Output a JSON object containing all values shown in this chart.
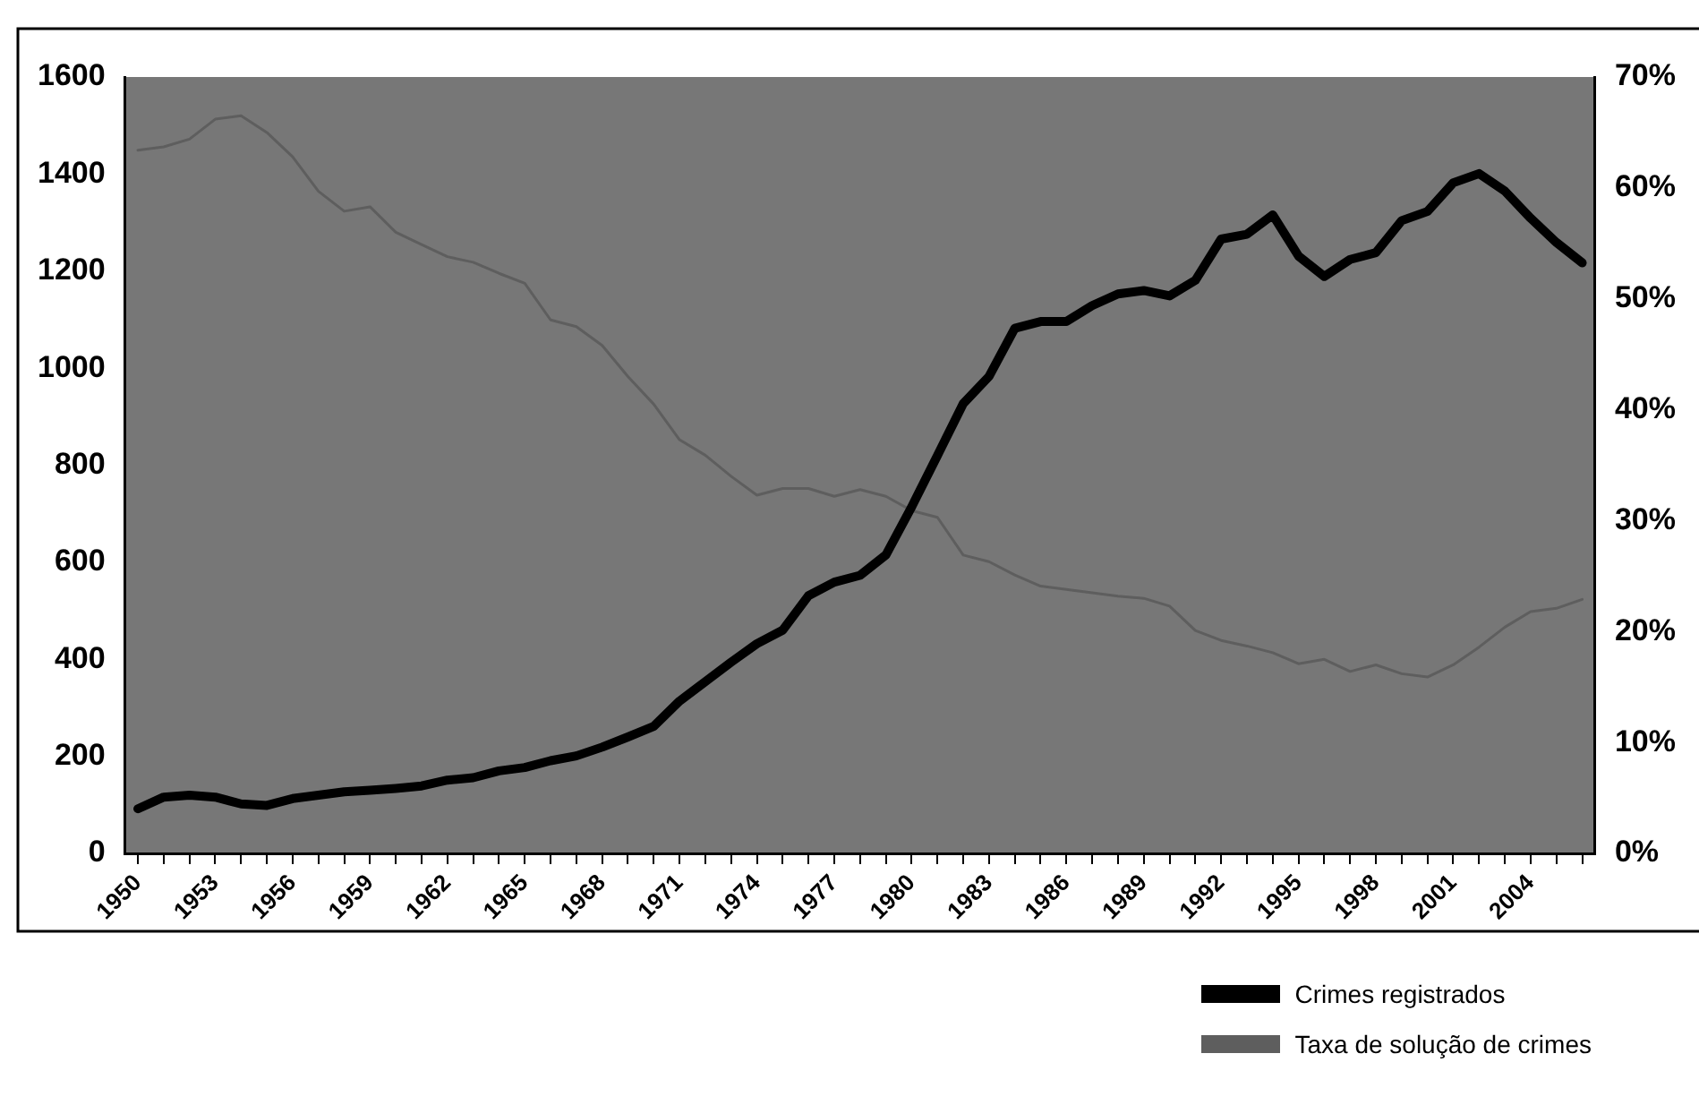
{
  "chart_data": {
    "type": "line",
    "categories": [
      "1950",
      null,
      null,
      "1953",
      null,
      null,
      "1956",
      null,
      null,
      "1959",
      null,
      null,
      "1962",
      null,
      null,
      "1965",
      null,
      null,
      "1968",
      null,
      null,
      "1971",
      null,
      null,
      "1974",
      null,
      null,
      "1977",
      null,
      null,
      "1980",
      null,
      null,
      "1983",
      null,
      null,
      "1986",
      null,
      null,
      "1989",
      null,
      null,
      "1992",
      null,
      null,
      "1995",
      null,
      null,
      "1998",
      null,
      null,
      "2001",
      null,
      null,
      "2004",
      null,
      null
    ],
    "series": [
      {
        "name": "Crimes registrados",
        "color": "#000000",
        "values": [
          92,
          116,
          120,
          116,
          102,
          99,
          113,
          120,
          127,
          130,
          134,
          139,
          151,
          156,
          170,
          177,
          191,
          201,
          219,
          240,
          262,
          314,
          354,
          394,
          432,
          460,
          531,
          559,
          573,
          615,
          714,
          820,
          927,
          983,
          1082,
          1096,
          1096,
          1129,
          1153,
          1160,
          1149,
          1181,
          1266,
          1276,
          1316,
          1231,
          1189,
          1224,
          1238,
          1304,
          1323,
          1382,
          1401,
          1365,
          1309,
          1259,
          1217
        ]
      },
      {
        "name": "Taxa de solução de crimes",
        "color": "#5e5e5e",
        "axis": "y2",
        "values": [
          63.4,
          63.7,
          64.4,
          66.2,
          66.5,
          65.0,
          62.8,
          59.7,
          57.9,
          58.3,
          56.0,
          54.9,
          53.8,
          53.3,
          52.3,
          51.4,
          48.1,
          47.5,
          45.8,
          43.0,
          40.5,
          37.3,
          35.9,
          34.0,
          32.3,
          32.9,
          32.9,
          32.2,
          32.8,
          32.2,
          30.9,
          30.3,
          26.9,
          26.3,
          25.1,
          24.1,
          23.8,
          23.5,
          23.2,
          23.0,
          22.3,
          20.1,
          19.2,
          18.7,
          18.1,
          17.1,
          17.5,
          16.4,
          17.0,
          16.2,
          15.9,
          17.0,
          18.6,
          20.4,
          21.8,
          22.1,
          22.9
        ]
      }
    ],
    "ylim": [
      0,
      1600
    ],
    "yticks": [
      0,
      200,
      400,
      600,
      800,
      1000,
      1200,
      1400,
      1600
    ],
    "y2lim": [
      0,
      70
    ],
    "y2ticks": [
      {
        "value": 0,
        "label": "0%"
      },
      {
        "value": 10,
        "label": "10%"
      },
      {
        "value": 20,
        "label": "20%"
      },
      {
        "value": 30,
        "label": "30%"
      },
      {
        "value": 40,
        "label": "40%"
      },
      {
        "value": 50,
        "label": "50%"
      },
      {
        "value": 60,
        "label": "60%"
      },
      {
        "value": 70,
        "label": "70%"
      }
    ],
    "grid": false,
    "legend": "bottom right",
    "marker": "none",
    "line_style": "solid"
  }
}
